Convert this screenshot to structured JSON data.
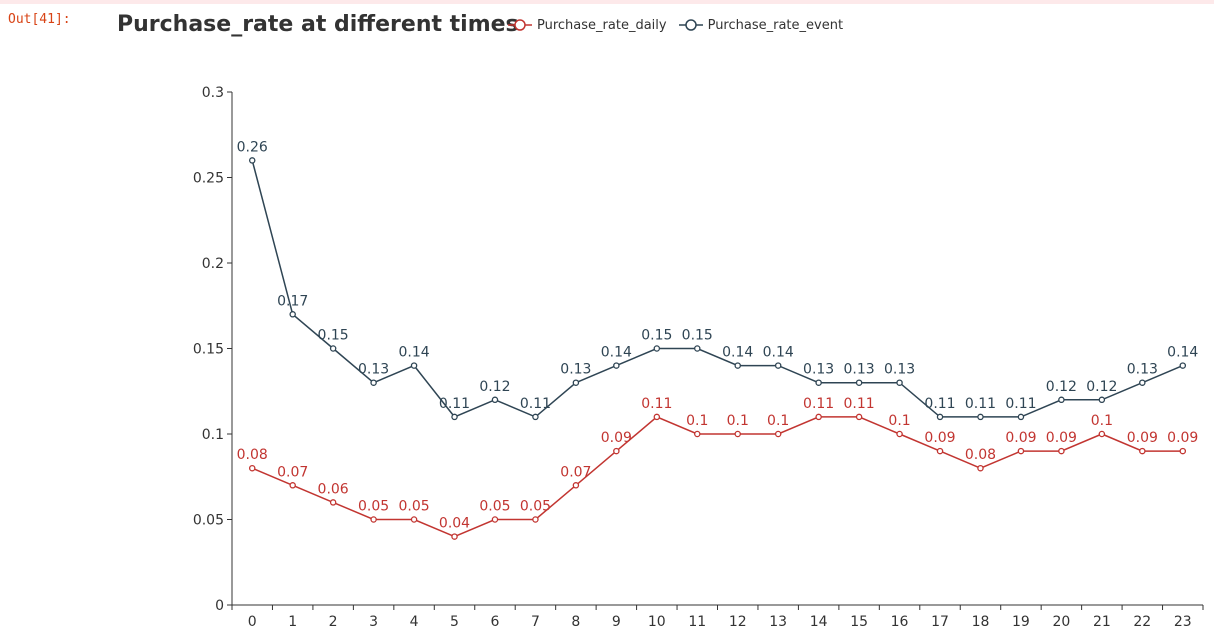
{
  "prompt": {
    "label": "Out[41]:"
  },
  "colors": {
    "daily": "#c23531",
    "event": "#2f4554",
    "axis": "#333333",
    "accent_bar": "#fde9ea",
    "prompt": "#d84315"
  },
  "chart_data": {
    "type": "line",
    "title": "Purchase_rate at different times",
    "xlabel": "",
    "ylabel": "",
    "legend_position": "top",
    "grid": false,
    "categories": [
      "0",
      "1",
      "2",
      "3",
      "4",
      "5",
      "6",
      "7",
      "8",
      "9",
      "10",
      "11",
      "12",
      "13",
      "14",
      "15",
      "16",
      "17",
      "18",
      "19",
      "20",
      "21",
      "22",
      "23"
    ],
    "ylim": [
      0,
      0.3
    ],
    "yticks": [
      0,
      0.05,
      0.1,
      0.15,
      0.2,
      0.25,
      0.3
    ],
    "ytick_labels": [
      "0",
      "0.05",
      "0.1",
      "0.15",
      "0.2",
      "0.25",
      "0.3"
    ],
    "series": [
      {
        "name": "Purchase_rate_daily",
        "color": "#c23531",
        "values": [
          0.08,
          0.07,
          0.06,
          0.05,
          0.05,
          0.04,
          0.05,
          0.05,
          0.07,
          0.09,
          0.11,
          0.1,
          0.1,
          0.1,
          0.11,
          0.11,
          0.1,
          0.09,
          0.08,
          0.09,
          0.09,
          0.1,
          0.09,
          0.09
        ],
        "labels": [
          "0.08",
          "0.07",
          "0.06",
          "0.05",
          "0.05",
          "0.04",
          "0.05",
          "0.05",
          "0.07",
          "0.09",
          "0.11",
          "0.1",
          "0.1",
          "0.1",
          "0.11",
          "0.11",
          "0.1",
          "0.09",
          "0.08",
          "0.09",
          "0.09",
          "0.1",
          "0.09",
          "0.09"
        ]
      },
      {
        "name": "Purchase_rate_event",
        "color": "#2f4554",
        "values": [
          0.26,
          0.17,
          0.15,
          0.13,
          0.14,
          0.11,
          0.12,
          0.11,
          0.13,
          0.14,
          0.15,
          0.15,
          0.14,
          0.14,
          0.13,
          0.13,
          0.13,
          0.11,
          0.11,
          0.11,
          0.12,
          0.12,
          0.13,
          0.14
        ],
        "labels": [
          "0.26",
          "0.17",
          "0.15",
          "0.13",
          "0.14",
          "0.11",
          "0.12",
          "0.11",
          "0.13",
          "0.14",
          "0.15",
          "0.15",
          "0.14",
          "0.14",
          "0.13",
          "0.13",
          "0.13",
          "0.11",
          "0.11",
          "0.11",
          "0.12",
          "0.12",
          "0.13",
          "0.14"
        ]
      }
    ]
  }
}
